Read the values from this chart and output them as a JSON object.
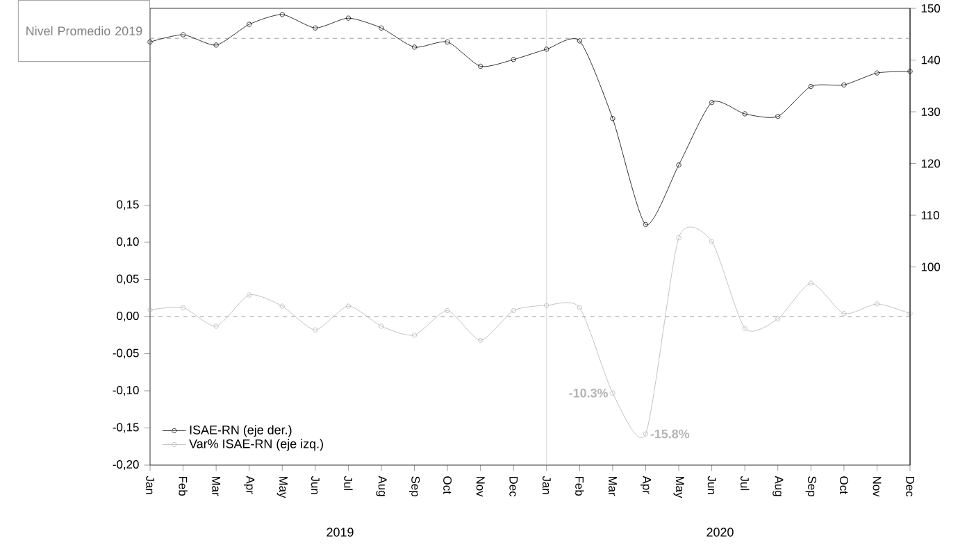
{
  "chart_data": {
    "type": "line",
    "x": [
      "2019-01",
      "2019-02",
      "2019-03",
      "2019-04",
      "2019-05",
      "2019-06",
      "2019-07",
      "2019-08",
      "2019-09",
      "2019-10",
      "2019-11",
      "2019-12",
      "2020-01",
      "2020-02",
      "2020-03",
      "2020-04",
      "2020-05",
      "2020-06",
      "2020-07",
      "2020-08",
      "2020-09",
      "2020-10",
      "2020-11",
      "2020-12"
    ],
    "xlim": [
      "2019-01",
      "2020-12"
    ],
    "xticks": [
      {
        "value": "2019-01",
        "label": "Jan"
      },
      {
        "value": "2019-02",
        "label": "Feb"
      },
      {
        "value": "2019-03",
        "label": "Mar"
      },
      {
        "value": "2019-04",
        "label": "Apr"
      },
      {
        "value": "2019-05",
        "label": "May"
      },
      {
        "value": "2019-06",
        "label": "Jun"
      },
      {
        "value": "2019-07",
        "label": "Jul"
      },
      {
        "value": "2019-08",
        "label": "Aug"
      },
      {
        "value": "2019-09",
        "label": "Sep"
      },
      {
        "value": "2019-10",
        "label": "Oct"
      },
      {
        "value": "2019-11",
        "label": "Nov"
      },
      {
        "value": "2019-12",
        "label": "Dec"
      },
      {
        "value": "2020-01",
        "label": "Jan"
      },
      {
        "value": "2020-02",
        "label": "Feb"
      },
      {
        "value": "2020-03",
        "label": "Mar"
      },
      {
        "value": "2020-04",
        "label": "Apr"
      },
      {
        "value": "2020-05",
        "label": "May"
      },
      {
        "value": "2020-06",
        "label": "Jun"
      },
      {
        "value": "2020-07",
        "label": "Jul"
      },
      {
        "value": "2020-08",
        "label": "Aug"
      },
      {
        "value": "2020-09",
        "label": "Sep"
      },
      {
        "value": "2020-10",
        "label": "Oct"
      },
      {
        "value": "2020-11",
        "label": "Nov"
      },
      {
        "value": "2020-12",
        "label": "Dec"
      }
    ],
    "ylim": [
      -0.2,
      0.415
    ],
    "yticks": [
      {
        "value": -0.2,
        "label": "-0,20"
      },
      {
        "value": -0.15,
        "label": "-0,15"
      },
      {
        "value": -0.1,
        "label": "-0,10"
      },
      {
        "value": -0.05,
        "label": "-0,05"
      },
      {
        "value": 0,
        "label": "0,00"
      },
      {
        "value": 0.05,
        "label": "0,05"
      },
      {
        "value": 0.1,
        "label": "0,10"
      },
      {
        "value": 0.15,
        "label": "0,15"
      }
    ],
    "y2lim": [
      61.7,
      150
    ],
    "y2ticks": [
      100,
      110,
      120,
      130,
      140,
      150
    ],
    "series": [
      {
        "name": "ISAE-RN (eje der.)",
        "color": "#000000",
        "axis": "y2",
        "values": [
          143.5,
          144.9,
          142.9,
          146.9,
          148.8,
          146.2,
          148.1,
          146.2,
          142.5,
          143.5,
          138.8,
          140.1,
          142.1,
          143.7,
          128.7,
          108.2,
          119.7,
          131.8,
          129.6,
          129.1,
          134.9,
          135.2,
          137.5,
          137.8
        ]
      },
      {
        "name": "Var% ISAE-RN (eje izq.)",
        "color": "#b4b4b4",
        "axis": "y",
        "values": [
          0.009,
          0.012,
          -0.013,
          0.029,
          0.014,
          -0.018,
          0.014,
          -0.013,
          -0.025,
          0.008,
          -0.032,
          0.008,
          0.015,
          0.012,
          -0.103,
          -0.158,
          0.106,
          0.101,
          -0.016,
          -0.003,
          0.045,
          0.004,
          0.017,
          0.004
        ],
        "value_labels": [
          null,
          null,
          null,
          null,
          null,
          null,
          null,
          null,
          null,
          null,
          null,
          null,
          null,
          null,
          "-10.3%",
          "-15.8%",
          null,
          null,
          null,
          null,
          null,
          null,
          null,
          null
        ]
      }
    ],
    "ref_lines": [
      {
        "axis": "y2",
        "value": 144.2,
        "label": "Nivel Promedio 2019",
        "color": "#808080",
        "line_style": "dashed"
      },
      {
        "axis": "y",
        "value": 0,
        "color": "#808080",
        "line_style": "dashed"
      },
      {
        "axis": "x",
        "value": "2020-01",
        "color": "#c8c8c8",
        "line_style": "solid"
      }
    ],
    "annotations": [
      "2019",
      "2020"
    ],
    "marker": "circle",
    "line_style": "solid",
    "legend": "bottom left",
    "grid": false
  }
}
